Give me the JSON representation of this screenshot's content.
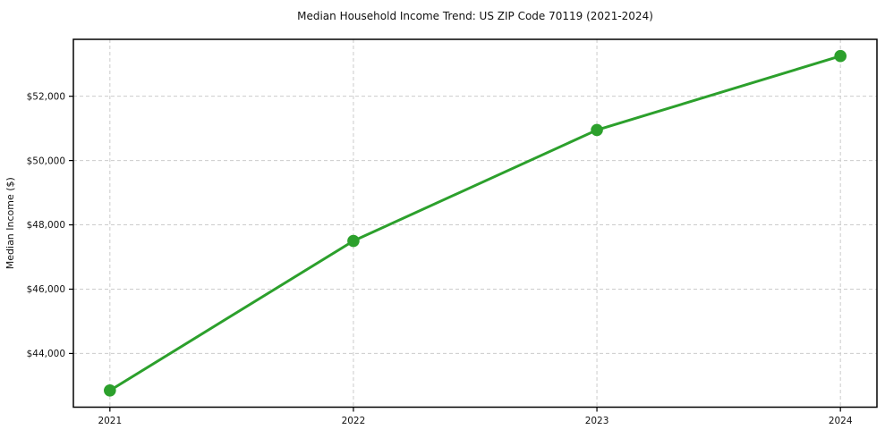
{
  "chart_data": {
    "type": "line",
    "title": "Median Household Income Trend: US ZIP Code 70119 (2021-2024)",
    "xlabel": "",
    "ylabel": "Median Income ($)",
    "x": [
      2021,
      2022,
      2023,
      2024
    ],
    "x_tick_labels": [
      "2021",
      "2022",
      "2023",
      "2024"
    ],
    "series": [
      {
        "name": "Median household income",
        "values": [
          42850,
          47500,
          50950,
          53250
        ],
        "color": "#2ca02c",
        "marker": "circle",
        "line_style": "solid"
      }
    ],
    "xlim": [
      2020.85,
      2024.15
    ],
    "ylim": [
      42330,
      53770
    ],
    "yticks": [
      44000,
      46000,
      48000,
      50000,
      52000
    ],
    "y_tick_labels": [
      "$44,000",
      "$46,000",
      "$48,000",
      "$50,000",
      "$52,000"
    ],
    "grid": true,
    "grid_style": "dashed",
    "legend": false,
    "colors": {
      "line": "#2ca02c",
      "marker": "#2ca02c",
      "grid": "#cccccc",
      "spine": "#000000",
      "text": "#111111",
      "background": "#ffffff"
    }
  }
}
